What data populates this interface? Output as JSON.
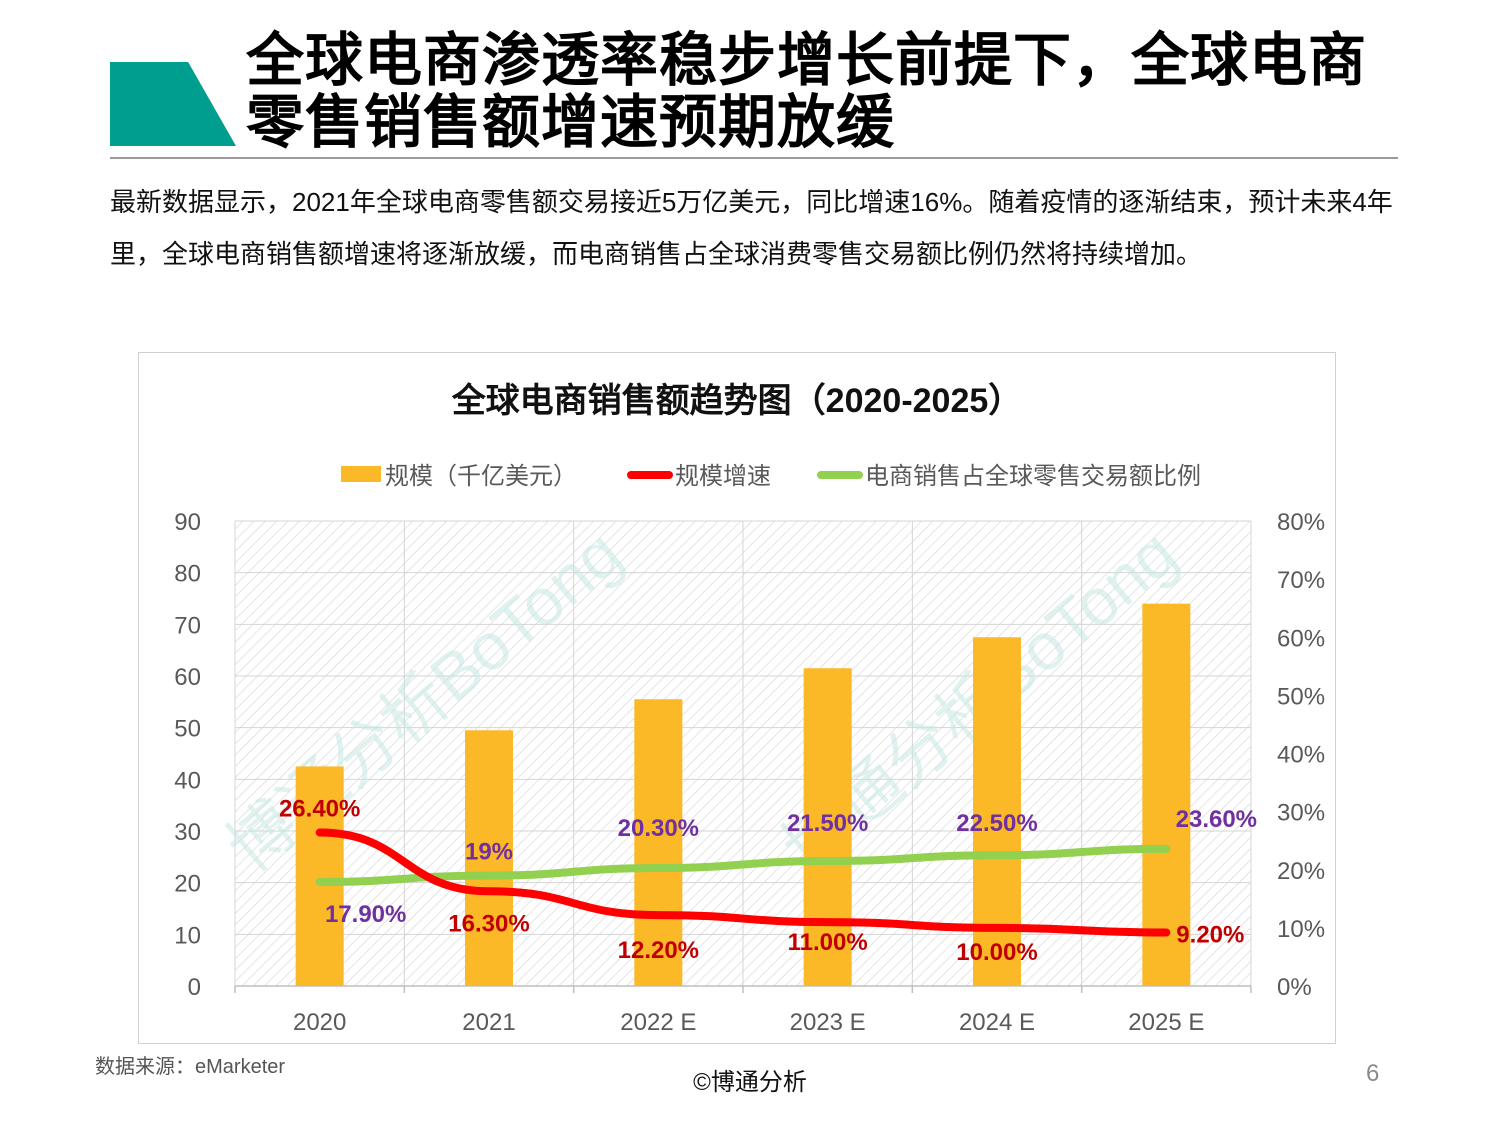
{
  "slide": {
    "title": "全球电商渗透率稳步增长前提下，全球电商零售销售额增速预期放缓",
    "intro": "最新数据显示，2021年全球电商零售额交易接近5万亿美元，同比增速16%。随着疫情的逐渐结束，预计未来4年里，全球电商销售额增速将逐渐放缓，而电商销售占全球消费零售交易额比例仍然将持续增加。",
    "source": "数据来源：eMarketer",
    "copyright": "©博通分析",
    "page_number": "6",
    "watermark": "博通分析BoTong"
  },
  "chart_data": {
    "type": "bar",
    "title": "全球电商销售额趋势图（2020-2025）",
    "categories": [
      "2020",
      "2021",
      "2022 E",
      "2023 E",
      "2024 E",
      "2025 E"
    ],
    "series": [
      {
        "name": "规模（千亿美元）",
        "type": "bar",
        "axis": "left",
        "color": "#fbb827",
        "values": [
          42.5,
          49.5,
          55.5,
          61.5,
          67.5,
          74
        ]
      },
      {
        "name": "规模增速",
        "type": "line",
        "axis": "right",
        "color": "#ff0000",
        "label_color": "#c00000",
        "values": [
          26.4,
          16.3,
          12.2,
          11.0,
          10.0,
          9.2
        ],
        "labels": [
          "26.40%",
          "16.30%",
          "12.20%",
          "11.00%",
          "10.00%",
          "9.20%"
        ]
      },
      {
        "name": "电商销售占全球零售交易额比例",
        "type": "line",
        "axis": "right",
        "color": "#92d050",
        "label_color": "#7030a0",
        "values": [
          17.9,
          19,
          20.3,
          21.5,
          22.5,
          23.6
        ],
        "labels": [
          "17.90%",
          "19%",
          "20.30%",
          "21.50%",
          "22.50%",
          "23.60%"
        ]
      }
    ],
    "legend": [
      "规模（千亿美元）",
      "规模增速",
      "电商销售占全球零售交易额比例"
    ],
    "legend_position": "top",
    "y_left": {
      "min": 0,
      "max": 90,
      "step": 10,
      "ticks": [
        "0",
        "10",
        "20",
        "30",
        "40",
        "50",
        "60",
        "70",
        "80",
        "90"
      ]
    },
    "y_right": {
      "min": 0,
      "max": 80,
      "step": 10,
      "ticks": [
        "0%",
        "10%",
        "20%",
        "30%",
        "40%",
        "50%",
        "60%",
        "70%",
        "80%"
      ]
    },
    "grid": true,
    "plot_background": "hatched"
  }
}
